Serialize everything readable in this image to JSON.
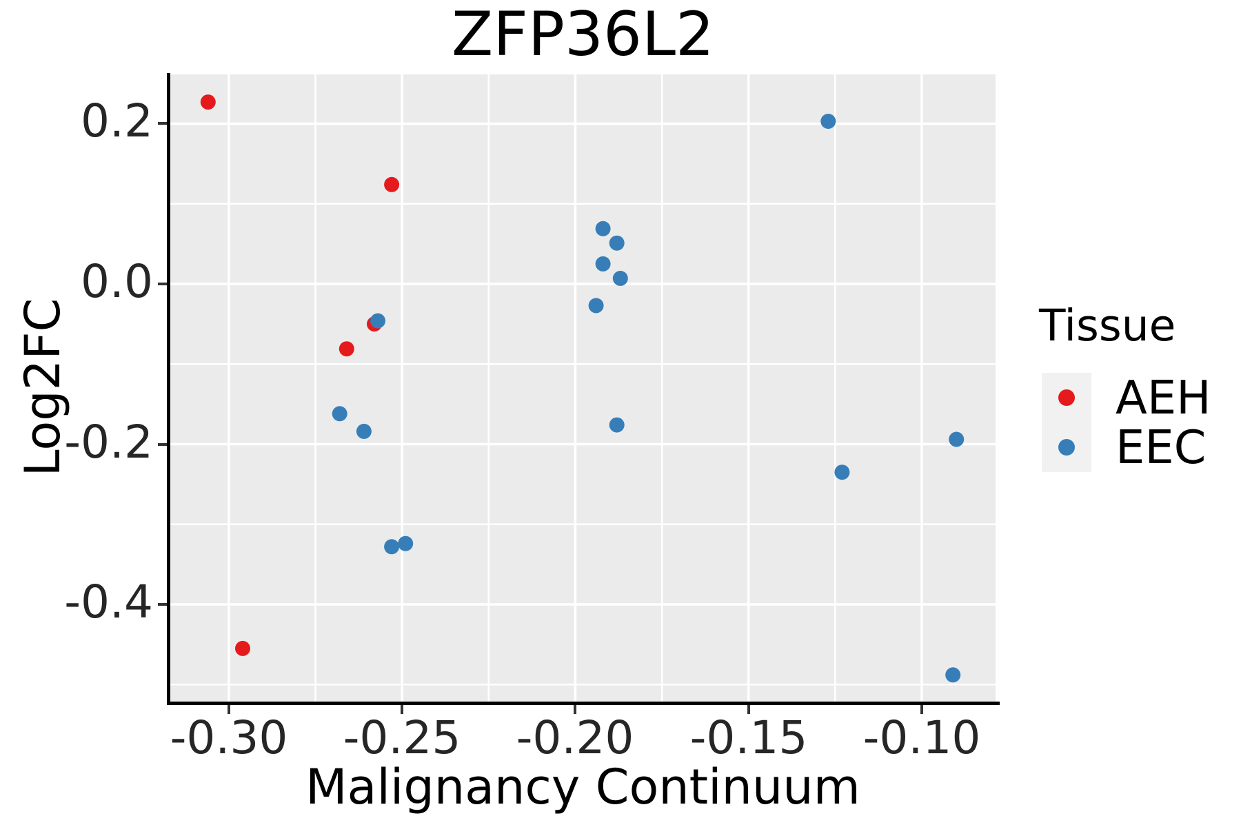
{
  "figure": {
    "title": "ZFP36L2"
  },
  "chart_data": {
    "type": "scatter",
    "title": "ZFP36L2",
    "xlabel": "Malignancy Continuum",
    "ylabel": "Log2FC",
    "xlim": [
      -0.3169,
      -0.0787
    ],
    "ylim": [
      -0.523,
      0.2615
    ],
    "grid": true,
    "x_tick_values": [
      -0.3,
      -0.25,
      -0.2,
      -0.15,
      -0.1
    ],
    "x_tick_labels": [
      "-0.30",
      "-0.25",
      "-0.20",
      "-0.15",
      "-0.10"
    ],
    "y_tick_values": [
      0.2,
      0.0,
      -0.2,
      -0.4
    ],
    "y_tick_labels": [
      "0.2",
      "0.0",
      "-0.2",
      "-0.4"
    ],
    "x_minor_ticks": [
      -0.275,
      -0.225,
      -0.175,
      -0.125
    ],
    "y_minor_ticks": [
      0.1,
      -0.1,
      -0.3,
      -0.5
    ],
    "legend_title": "Tissue",
    "legend_position": "right",
    "series": [
      {
        "name": "AEH",
        "color": "#E41A1C",
        "points": [
          [
            -0.306,
            0.227
          ],
          [
            -0.253,
            0.124
          ],
          [
            -0.258,
            -0.05
          ],
          [
            -0.266,
            -0.081
          ],
          [
            -0.296,
            -0.455
          ]
        ]
      },
      {
        "name": "EEC",
        "color": "#377EB8",
        "points": [
          [
            -0.257,
            -0.046
          ],
          [
            -0.268,
            -0.162
          ],
          [
            -0.261,
            -0.184
          ],
          [
            -0.253,
            -0.328
          ],
          [
            -0.249,
            -0.324
          ],
          [
            -0.192,
            0.069
          ],
          [
            -0.188,
            0.051
          ],
          [
            -0.192,
            0.025
          ],
          [
            -0.187,
            0.007
          ],
          [
            -0.194,
            -0.027
          ],
          [
            -0.188,
            -0.176
          ],
          [
            -0.127,
            0.203
          ],
          [
            -0.123,
            -0.235
          ],
          [
            -0.09,
            -0.194
          ],
          [
            -0.091,
            -0.488
          ]
        ]
      }
    ],
    "colors": {
      "panel_background": "#EBEBEB",
      "gridline": "#FFFFFF",
      "legend_key_background": "#F1F1F1",
      "axis_line": "#000000",
      "tick_mark": "#333333",
      "tick_label": "#262626",
      "text": "#000000"
    }
  }
}
